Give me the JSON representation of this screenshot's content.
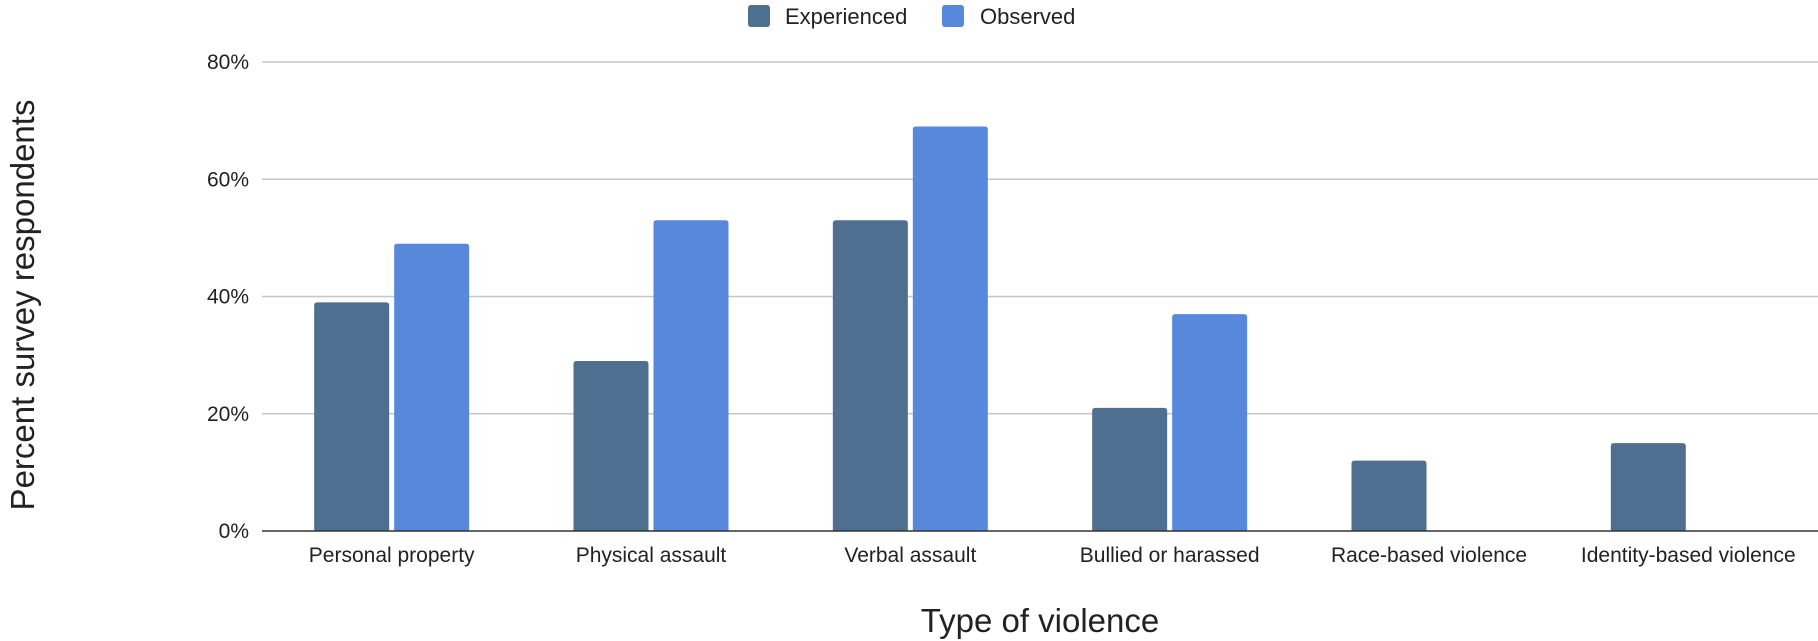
{
  "chart_data": {
    "type": "bar",
    "title": "",
    "xlabel": "Type of violence",
    "ylabel": "Percent survey respondents",
    "categories": [
      "Personal property",
      "Physical assault",
      "Verbal assault",
      "Bullied or harassed",
      "Race-based violence",
      "Identity-based violence"
    ],
    "series": [
      {
        "name": "Experienced",
        "color": "#4e6f8f",
        "values": [
          39,
          29,
          53,
          21,
          12,
          15
        ]
      },
      {
        "name": "Observed",
        "color": "#5788db",
        "values": [
          49,
          53,
          69,
          37,
          null,
          null
        ]
      }
    ],
    "ylim": [
      0,
      80
    ],
    "yticks": [
      0,
      20,
      40,
      60,
      80
    ],
    "ytick_format": "%",
    "grid": true,
    "legend_position": "top-center"
  }
}
